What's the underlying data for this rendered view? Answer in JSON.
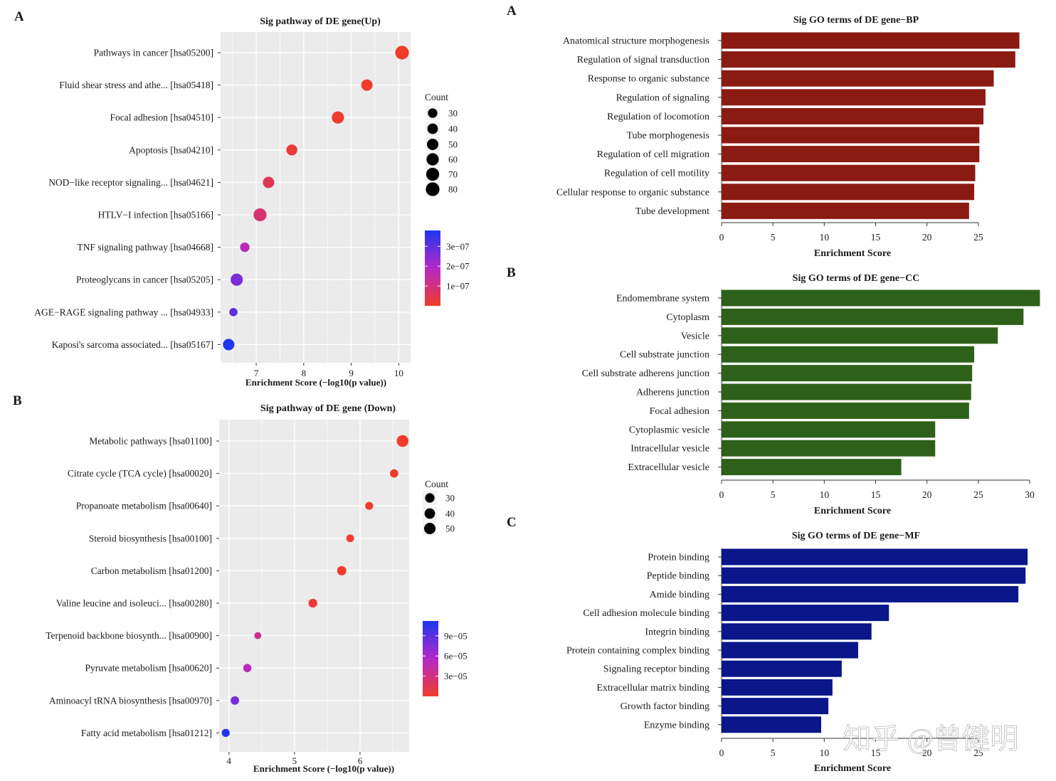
{
  "watermark": "知乎 @曾健明",
  "colors": {
    "panel_bg": "#EBEBEB",
    "grid": "#FFFFFF",
    "bp": "#8B1A12",
    "cc": "#2D6119",
    "mf": "#0A168A",
    "grad_low": "#F03C2A",
    "grad_high": "#1E36F0"
  },
  "chart_data": [
    {
      "type": "scatter",
      "panel_label": "A",
      "title": "Sig pathway of DE gene(Up)",
      "xlabel": "Enrichment Score (−log10(p value))",
      "xlim": [
        6.25,
        10.25
      ],
      "xticks": [
        7,
        8,
        9,
        10
      ],
      "categories": [
        "Pathways in cancer [hsa05200]",
        "Fluid shear stress and athe... [hsa05418]",
        "Focal adhesion [hsa04510]",
        "Apoptosis [hsa04210]",
        "NOD−like receptor signaling... [hsa04621]",
        "HTLV−I infection [hsa05166]",
        "TNF signaling pathway [hsa04668]",
        "Proteoglycans in cancer [hsa05205]",
        "AGE−RAGE signaling pathway ... [hsa04933]",
        "Kaposi's sarcoma associated... [hsa05167]"
      ],
      "x": [
        10.07,
        9.33,
        8.72,
        7.75,
        7.26,
        7.08,
        6.76,
        6.59,
        6.52,
        6.42
      ],
      "count": [
        80,
        50,
        60,
        45,
        50,
        70,
        30,
        60,
        20,
        50
      ],
      "pvalue": [
        1e-10,
        5e-10,
        2e-09,
        1.8e-08,
        5.5e-08,
        8.3e-08,
        1.7e-07,
        2.6e-07,
        3e-07,
        3.8e-07
      ],
      "size_legend": {
        "title": "Count",
        "values": [
          30,
          40,
          50,
          60,
          70,
          80
        ]
      },
      "color_legend": {
        "labels": [
          "3e−07",
          "2e−07",
          "1e−07"
        ],
        "values": [
          3e-07,
          2e-07,
          1e-07
        ],
        "range": [
          0,
          3.8e-07
        ]
      }
    },
    {
      "type": "scatter",
      "panel_label": "B",
      "title": "Sig pathway of DE gene (Down)",
      "xlabel": "Enrichment Score (−log10(p value))",
      "xlim": [
        3.85,
        6.75
      ],
      "xticks": [
        4,
        5,
        6
      ],
      "categories": [
        "Metabolic pathways [hsa01100]",
        "Citrate cycle (TCA cycle) [hsa00020]",
        "Propanoate metabolism [hsa00640]",
        "Steroid biosynthesis [hsa00100]",
        "Carbon metabolism [hsa01200]",
        "Valine leucine and isoleuci... [hsa00280]",
        "Terpenoid backbone biosynth... [hsa00900]",
        "Pyruvate metabolism [hsa00620]",
        "Aminoacyl tRNA biosynthesis [hsa00970]",
        "Fatty acid metabolism [hsa01212]"
      ],
      "x": [
        6.65,
        6.52,
        6.14,
        5.85,
        5.72,
        5.28,
        4.44,
        4.28,
        4.09,
        3.95
      ],
      "count": [
        55,
        20,
        18,
        16,
        28,
        24,
        12,
        20,
        22,
        18
      ],
      "pvalue": [
        2e-07,
        3e-07,
        7e-07,
        1.4e-06,
        1.9e-06,
        5.2e-06,
        3.6e-05,
        5.2e-05,
        8.1e-05,
        0.000112
      ],
      "size_legend": {
        "title": "Count",
        "values": [
          30,
          40,
          50
        ]
      },
      "color_legend": {
        "labels": [
          "9e−05",
          "6e−05",
          "3e−05"
        ],
        "values": [
          9e-05,
          6e-05,
          3e-05
        ],
        "range": [
          0,
          0.000112
        ]
      }
    },
    {
      "type": "bar",
      "orientation": "horizontal",
      "panel_label": "A",
      "title": "Sig GO terms of DE gene−BP",
      "xlabel": "Enrichment Score",
      "xlim": [
        0,
        31
      ],
      "xticks": [
        0,
        5,
        10,
        15,
        20,
        25
      ],
      "categories": [
        "Anatomical structure morphogenesis",
        "Regulation of signal transduction",
        "Response to organic substance",
        "Regulation of signaling",
        "Regulation of locomotion",
        "Tube morphogenesis",
        "Regulation of cell migration",
        "Regulation of cell motility",
        "Cellular response to organic substance",
        "Tube development"
      ],
      "values": [
        29.0,
        28.6,
        26.5,
        25.7,
        25.5,
        25.1,
        25.1,
        24.7,
        24.6,
        24.1
      ],
      "color": "#8B1A12"
    },
    {
      "type": "bar",
      "orientation": "horizontal",
      "panel_label": "B",
      "title": "Sig GO terms of DE gene−CC",
      "xlabel": "Enrichment Score",
      "xlim": [
        0,
        31
      ],
      "xticks": [
        0,
        5,
        10,
        15,
        20,
        25,
        30
      ],
      "categories": [
        "Endomembrane system",
        "Cytoplasm",
        "Vesicle",
        "Cell substrate junction",
        "Cell substrate adherens junction",
        "Adherens junction",
        "Focal adhesion",
        "Cytoplasmic vesicle",
        "Intracellular vesicle",
        "Extracellular vesicle"
      ],
      "values": [
        31.0,
        29.4,
        26.9,
        24.6,
        24.4,
        24.3,
        24.1,
        20.8,
        20.8,
        17.5
      ],
      "color": "#2D6119"
    },
    {
      "type": "bar",
      "orientation": "horizontal",
      "panel_label": "C",
      "title": "Sig GO terms of DE gene−MF",
      "xlabel": "Enrichment Score",
      "xlim": [
        0,
        30
      ],
      "xticks": [
        0,
        5,
        10,
        15,
        20,
        25
      ],
      "categories": [
        "Protein binding",
        "Peptide binding",
        "Amide binding",
        "Cell adhesion molecule binding",
        "Integrin binding",
        "Protein containing complex binding",
        "Signaling receptor binding",
        "Extracellular matrix binding",
        "Growth factor binding",
        "Enzyme binding"
      ],
      "values": [
        29.8,
        29.6,
        28.9,
        16.3,
        14.6,
        13.3,
        11.7,
        10.8,
        10.4,
        9.7
      ],
      "color": "#0A168A"
    }
  ]
}
